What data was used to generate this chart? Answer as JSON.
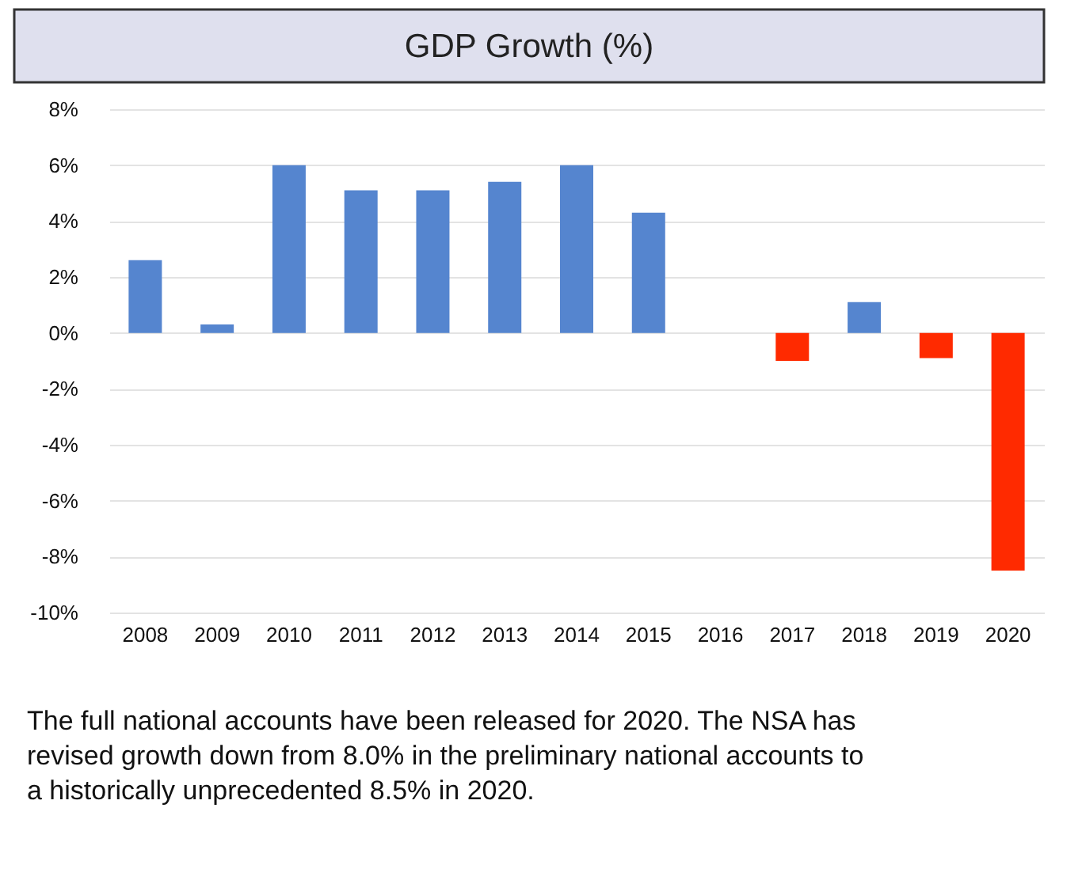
{
  "chart_data": {
    "type": "bar",
    "title": "GDP Growth (%)",
    "categories": [
      "2008",
      "2009",
      "2010",
      "2011",
      "2012",
      "2013",
      "2014",
      "2015",
      "2016",
      "2017",
      "2018",
      "2019",
      "2020"
    ],
    "values": [
      2.6,
      0.3,
      6.0,
      5.1,
      5.1,
      5.4,
      6.0,
      4.3,
      null,
      -1.0,
      1.1,
      -0.9,
      -8.5
    ],
    "colors": [
      "#5585cf",
      "#5585cf",
      "#5585cf",
      "#5585cf",
      "#5585cf",
      "#5585cf",
      "#5585cf",
      "#5585cf",
      "#5585cf",
      "#ff2a00",
      "#5585cf",
      "#ff2a00",
      "#ff2a00"
    ],
    "ylim": [
      -10,
      8
    ],
    "yticks": [
      {
        "value": -10,
        "label": "-10%"
      },
      {
        "value": -8,
        "label": "-8%"
      },
      {
        "value": -6,
        "label": "-6%"
      },
      {
        "value": -4,
        "label": "-4%"
      },
      {
        "value": -2,
        "label": "-2%"
      },
      {
        "value": 0,
        "label": "0%"
      },
      {
        "value": 2,
        "label": "2%"
      },
      {
        "value": 4,
        "label": "4%"
      },
      {
        "value": 6,
        "label": "6%"
      },
      {
        "value": 8,
        "label": "8%"
      }
    ],
    "grid": "y",
    "annotations": [
      "The full national accounts have been released for 2020. The NSA has revised growth down from 8.0% in the preliminary national accounts to a historically unprecedented 8.5% in 2020."
    ]
  }
}
